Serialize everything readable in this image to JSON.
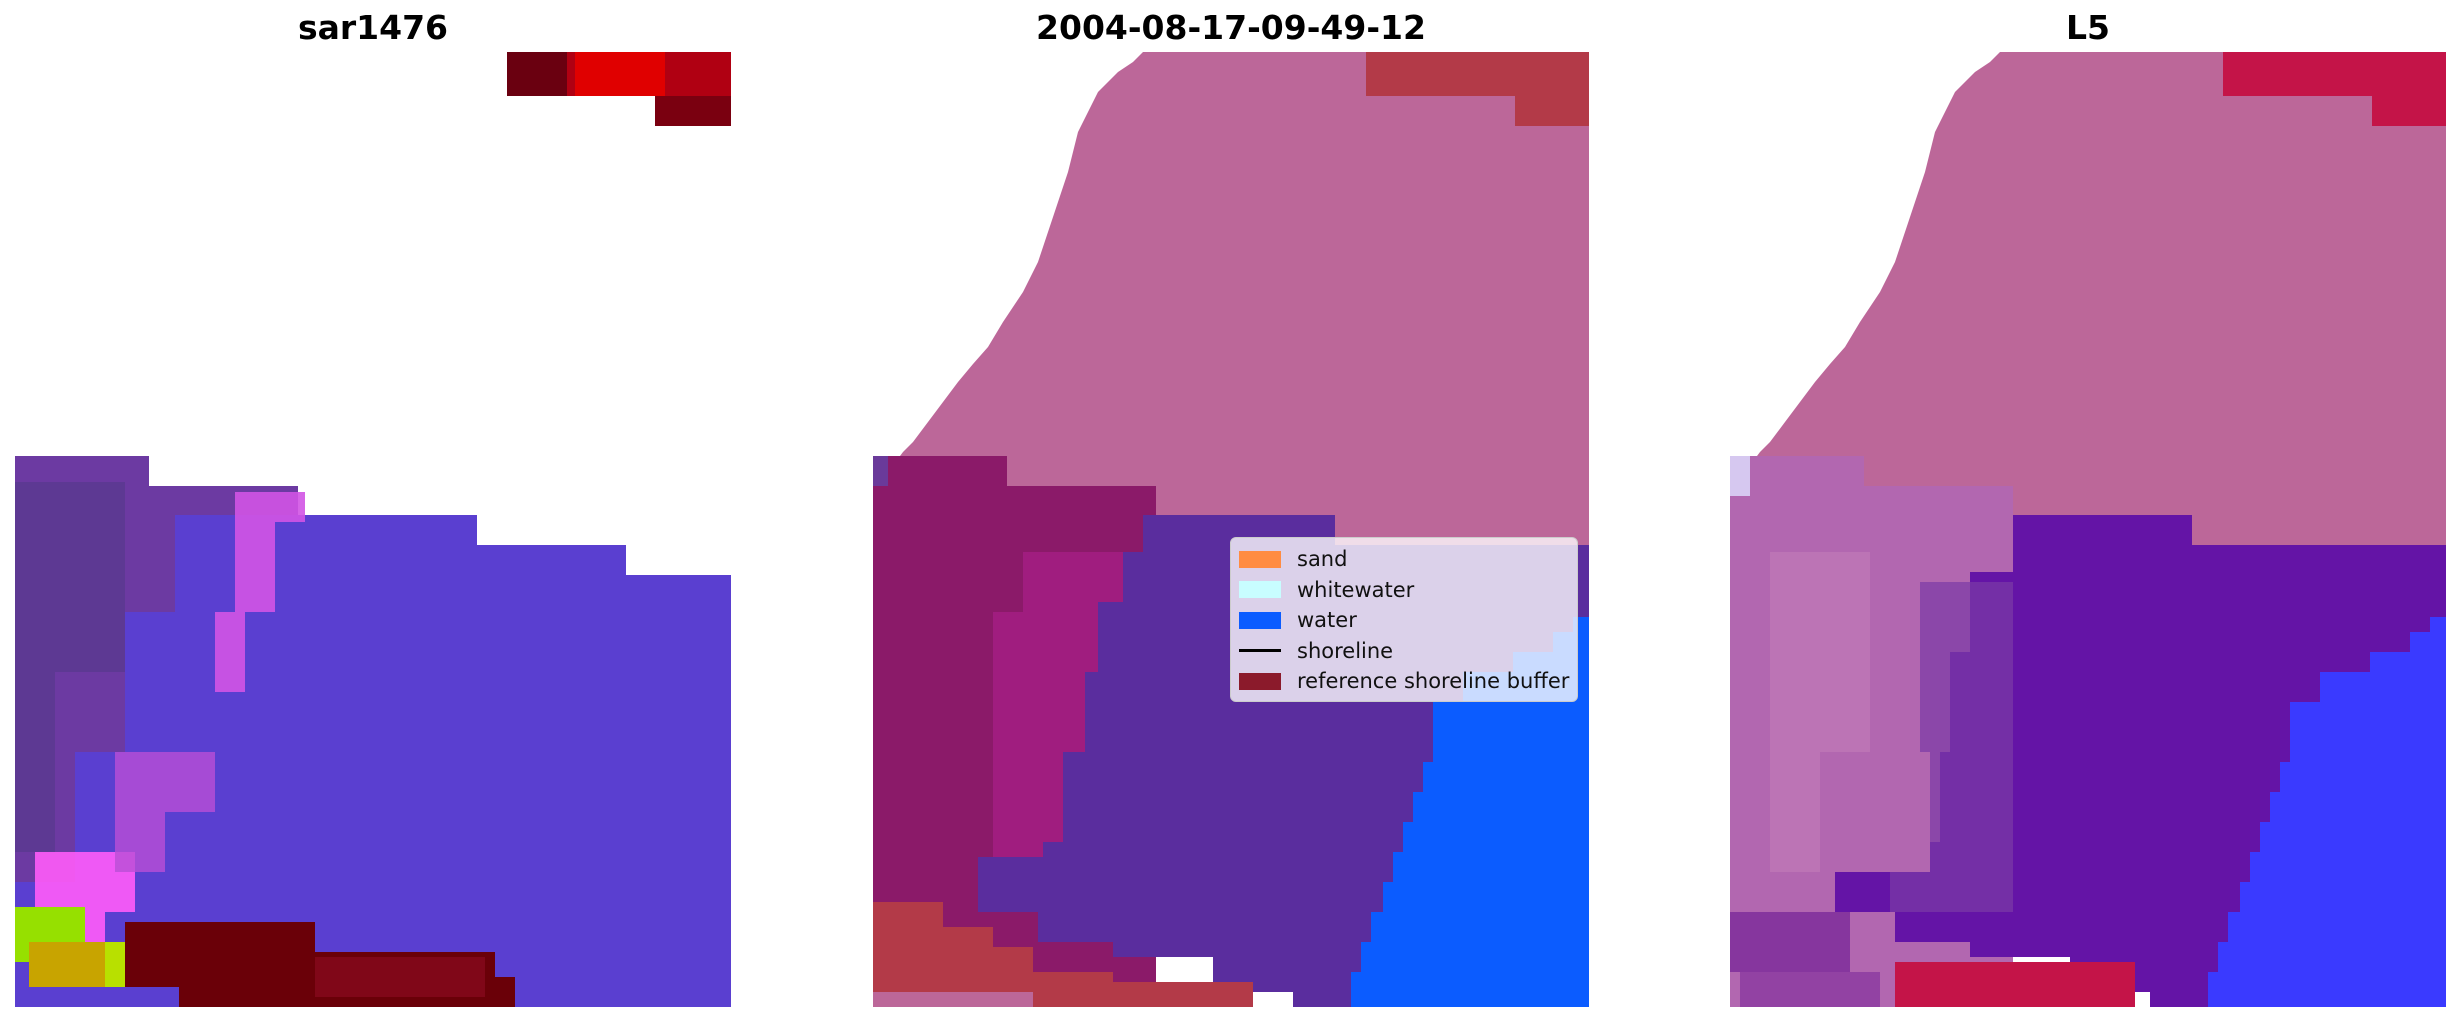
{
  "panels": [
    {
      "title": "sar1476"
    },
    {
      "title": "2004-08-17-09-49-12"
    },
    {
      "title": "L5"
    }
  ],
  "legend": {
    "items": [
      {
        "label": "sand",
        "color": "#ff8c42",
        "kind": "patch"
      },
      {
        "label": "whitewater",
        "color": "#c8fdff",
        "kind": "patch"
      },
      {
        "label": "water",
        "color": "#0b5cff",
        "kind": "patch"
      },
      {
        "label": "shoreline",
        "color": "#000000",
        "kind": "line"
      },
      {
        "label": "reference shoreline buffer",
        "color": "#8b1a2b",
        "kind": "patch"
      }
    ]
  },
  "colors": {
    "land_overlay": "#bc6799",
    "buffer": "#b33a48",
    "water": "#0b5cff",
    "surf_zone_purple": "#5a2d9e",
    "sar_blue": "#5a3fd0",
    "sar_dark_red": "#6a0008"
  }
}
